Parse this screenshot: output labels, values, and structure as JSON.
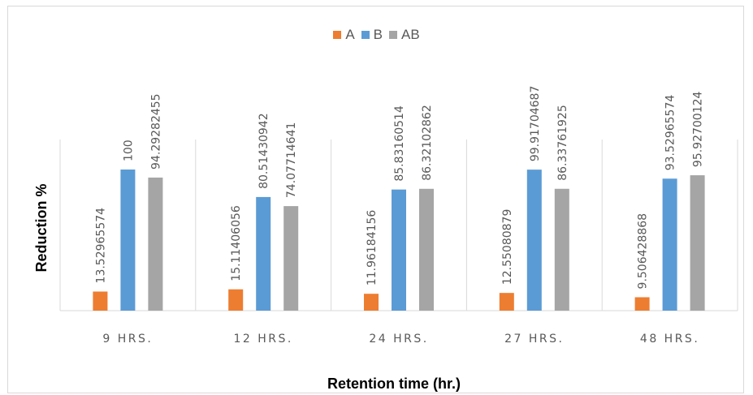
{
  "chart_data": {
    "type": "bar",
    "title": "",
    "xlabel": "Retention time (hr.)",
    "ylabel": "Reduction %",
    "categories": [
      "9 HRS.",
      "12 HRS.",
      "24 HRS.",
      "27 HRS.",
      "48 HRS."
    ],
    "series": [
      {
        "name": "A",
        "color": "#ED7D31",
        "values": [
          13.52965574,
          15.11406056,
          11.96184156,
          12.55080879,
          9.506428868
        ],
        "labels": [
          "13.52965574",
          "15.11406056",
          "11.96184156",
          "12.55080879",
          "9.506428868"
        ]
      },
      {
        "name": "B",
        "color": "#5B9BD5",
        "values": [
          100,
          80.51430942,
          85.83160514,
          99.91704687,
          93.52965574
        ],
        "labels": [
          "100",
          "80.51430942",
          "85.83160514",
          "99.91704687",
          "93.52965574"
        ]
      },
      {
        "name": "AB",
        "color": "#A5A5A5",
        "values": [
          94.29282455,
          74.07714641,
          86.32102862,
          86.33761925,
          95.92700124
        ],
        "labels": [
          "94.29282455",
          "74.07714641",
          "86.32102862",
          "86.33761925",
          "95.92700124"
        ]
      }
    ],
    "ylim": [
      0,
      100
    ],
    "grid": "vertical category separators",
    "legend_position": "top"
  }
}
